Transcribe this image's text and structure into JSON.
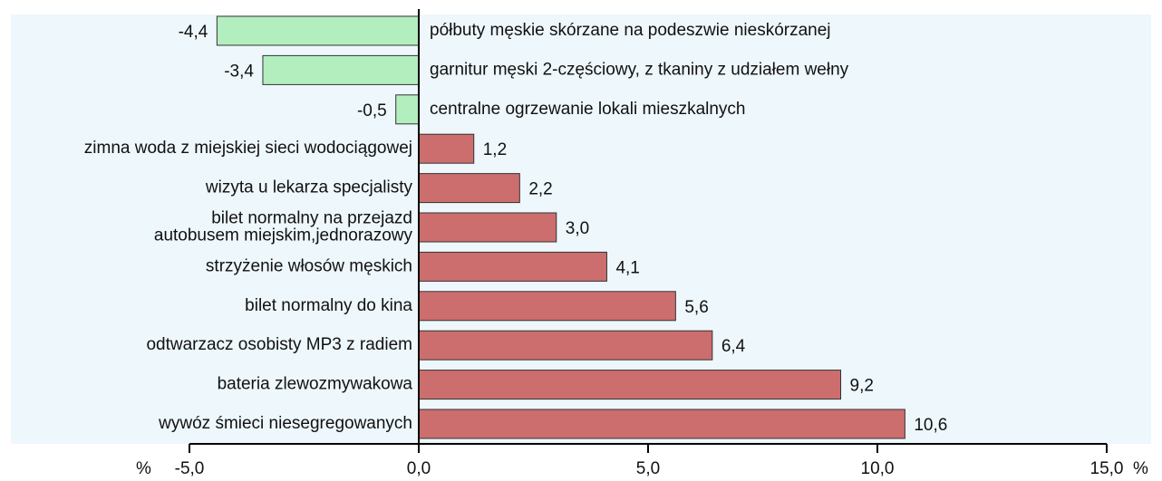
{
  "chart_data": {
    "type": "hbar",
    "categories": [
      "półbuty męskie skórzane na podeszwie nieskórzanej",
      "garnitur męski 2-częściowy, z tkaniny z udziałem wełny",
      "centralne ogrzewanie lokali mieszkalnych",
      "zimna woda z miejskiej sieci wodociągowej",
      "wizyta u lekarza specjalisty",
      "bilet normalny na przejazd\nautobusem miejskim,jednorazowy",
      "strzyżenie włosów męskich",
      "bilet normalny do kina",
      "odtwarzacz osobisty MP3 z radiem",
      "bateria zlewozmywakowa",
      "wywóz śmieci niesegregowanych"
    ],
    "values": [
      -4.4,
      -3.4,
      -0.5,
      1.2,
      2.2,
      3.0,
      4.1,
      5.6,
      6.4,
      9.2,
      10.6
    ],
    "value_labels": [
      "-4,4",
      "-3,4",
      "-0,5",
      "1,2",
      "2,2",
      "3,0",
      "4,1",
      "5,6",
      "6,4",
      "9,2",
      "10,6"
    ],
    "positive_color": "#cc6e6e",
    "negative_color": "#b3eebf",
    "xlim": [
      -5,
      15
    ],
    "xticks": [
      {
        "value": -5,
        "label": "-5,0"
      },
      {
        "value": 0,
        "label": "0,0"
      },
      {
        "value": 5,
        "label": "5,0"
      },
      {
        "value": 10,
        "label": "10,0"
      },
      {
        "value": 15,
        "label": "15,0"
      }
    ],
    "x_unit": "%"
  }
}
